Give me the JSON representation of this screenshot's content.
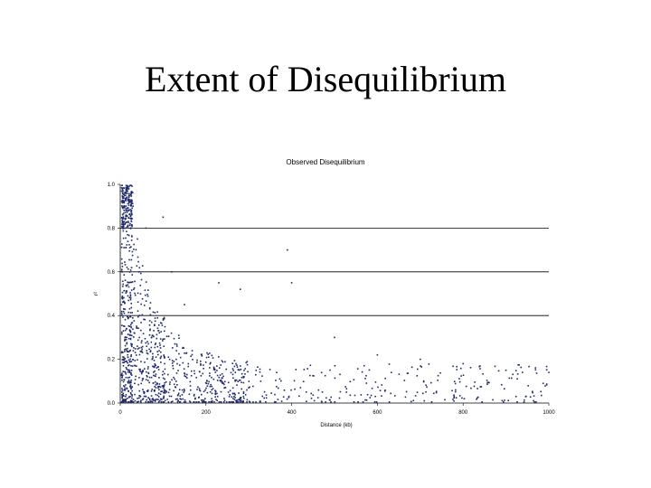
{
  "slide": {
    "title": "Extent of Disequilibrium"
  },
  "colors": {
    "points": "#1f2a6b",
    "gridlines": "#000000",
    "text": "#000000",
    "background": "#ffffff"
  },
  "chart_data": {
    "type": "scatter",
    "title": "Observed Disequilibrium",
    "xlabel": "Distance (kb)",
    "ylabel": "r²",
    "xlim": [
      0,
      1000
    ],
    "ylim": [
      0,
      1.0
    ],
    "x_ticks": [
      "0",
      "200",
      "400",
      "600",
      "800",
      "1000"
    ],
    "y_ticks": [
      "0.0",
      "0.2",
      "0.4",
      "0.6",
      "0.8",
      "1.0"
    ],
    "grid": "horizontal gridlines at 0.4, 0.6 and 0.8",
    "series": [
      {
        "point_count": 1400,
        "distribution": "dense near x=0–100 with r² spanning 0–1.0; decays with distance; beyond ~300 kb mostly below 0.3",
        "sample_points": [
          {
            "x": 5,
            "y": 0.98
          },
          {
            "x": 10,
            "y": 0.95
          },
          {
            "x": 20,
            "y": 0.93
          },
          {
            "x": 30,
            "y": 0.9
          },
          {
            "x": 40,
            "y": 0.75
          },
          {
            "x": 60,
            "y": 0.8
          },
          {
            "x": 100,
            "y": 0.85
          },
          {
            "x": 120,
            "y": 0.6
          },
          {
            "x": 150,
            "y": 0.45
          },
          {
            "x": 230,
            "y": 0.55
          },
          {
            "x": 280,
            "y": 0.52
          },
          {
            "x": 390,
            "y": 0.7
          },
          {
            "x": 400,
            "y": 0.55
          },
          {
            "x": 500,
            "y": 0.3
          },
          {
            "x": 600,
            "y": 0.22
          },
          {
            "x": 700,
            "y": 0.2
          },
          {
            "x": 800,
            "y": 0.18
          },
          {
            "x": 900,
            "y": 0.15
          },
          {
            "x": 1000,
            "y": 0.14
          }
        ]
      }
    ]
  }
}
